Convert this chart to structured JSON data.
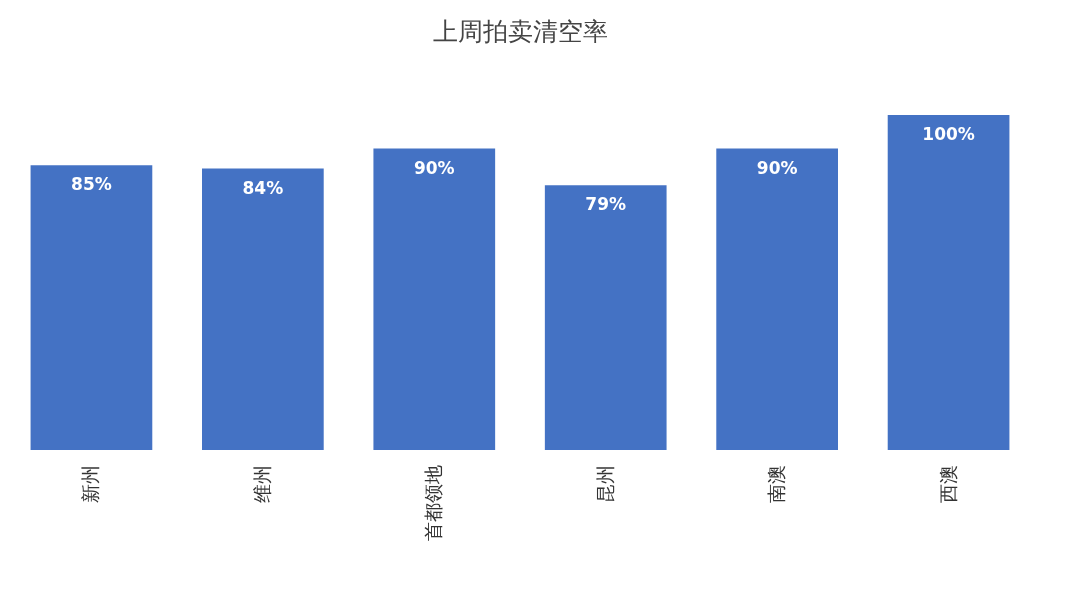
{
  "chart_data": {
    "type": "bar",
    "title": "上周拍卖清空率",
    "categories": [
      "新州",
      "维州",
      "首都领地",
      "昆州",
      "南澳",
      "西澳"
    ],
    "values": [
      85,
      84,
      90,
      79,
      90,
      100
    ],
    "value_labels": [
      "85%",
      "84%",
      "90%",
      "79%",
      "90%",
      "100%"
    ],
    "color": "#4472c4"
  }
}
